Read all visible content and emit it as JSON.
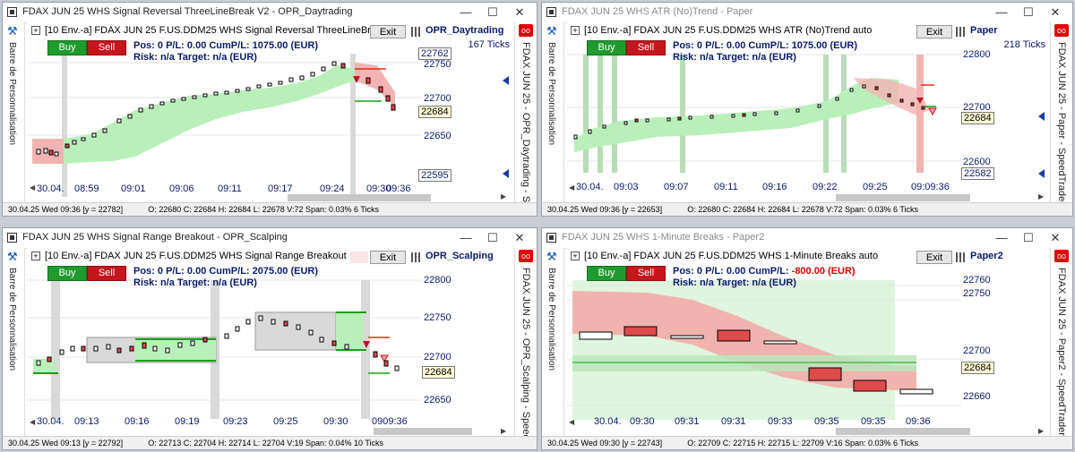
{
  "colors": {
    "green_zone": "#b9f0b9",
    "red_zone": "#f2b3b3",
    "gray_band": "#d9d9d9",
    "blue_text": "#0b1a6e"
  },
  "windows": [
    {
      "id": "w1",
      "title": "FDAX JUN 25   WHS Signal Reversal ThreeLineBreak V2 - OPR_Daytrading",
      "dim": false,
      "left_text": "Barre de Personnalisation",
      "right_text": "FDAX JUN 25 - OPR_Daytrading - SpeedTrader",
      "instrument": "[10 Env.-a] FDAX JUN 25   F.US.DDM25 WHS Signal Reversal ThreeLineBrea",
      "exit": "Exit",
      "account": "OPR_Daytrading",
      "ticks": "167 Ticks",
      "buy": "Buy",
      "sell": "Sell",
      "pos": "Pos: 0  P/L: 0.00  CumP/L:  1075.00 (EUR)",
      "pnl_neg": "",
      "risk": "Risk: n/a   Target: n/a (EUR)",
      "y_labels": [
        "22750",
        "22700",
        "22650"
      ],
      "y_boxes": [
        "22762",
        "22684",
        "22595"
      ],
      "x_labels": [
        "30.04.",
        "08:59",
        "09:01",
        "09:06",
        "09:11",
        "09:17",
        "09:24",
        "09:30",
        "09:36"
      ],
      "status": "30.04.25 Wed  09:36 [y = 22782]",
      "ohlc": "O: 22680  C: 22684  H: 22684  L: 22678  V:72  Span: 0.03% 6 Ticks"
    },
    {
      "id": "w2",
      "title": "FDAX JUN 25   WHS ATR (No)Trend - Paper",
      "dim": true,
      "left_text": "Barre de Personnalisation",
      "right_text": "FDAX JUN 25 - Paper - SpeedTrader",
      "instrument": "[10 Env.-a] FDAX JUN 25   F.US.DDM25 WHS ATR (No)Trend  auto",
      "exit": "Exit",
      "account": "Paper",
      "ticks": "218 Ticks",
      "buy": "Buy",
      "sell": "Sell",
      "pos": "Pos: 0  P/L: 0.00  CumP/L:  1075.00 (EUR)",
      "pnl_neg": "",
      "risk": "Risk: n/a   Target: n/a (EUR)",
      "y_labels": [
        "22800",
        "22700",
        "22600"
      ],
      "y_boxes": [
        "22684",
        "22582"
      ],
      "x_labels": [
        "30.04.",
        "09:03",
        "09:07",
        "09:11",
        "09:16",
        "09:22",
        "09:25",
        "09:09:36"
      ],
      "status": "30.04.25 Wed  09:36 [y = 22653]",
      "ohlc": "O: 22680  C: 22684  H: 22684  L: 22678  V:72  Span: 0.03% 6 Ticks"
    },
    {
      "id": "w3",
      "title": "FDAX JUN 25   WHS Signal Range Breakout - OPR_Scalping",
      "dim": false,
      "left_text": "Barre de Personnalisation",
      "right_text": "FDAX JUN 25 - OPR_Scalping - SpeedTrader",
      "instrument": "[10 Env.-a] FDAX JUN 25   F.US.DDM25 WHS Signal Range Breakout",
      "exit": "Exit",
      "account": "OPR_Scalping",
      "ticks": "",
      "buy": "Buy",
      "sell": "Sell",
      "pos": "Pos: 0  P/L: 0.00  CumP/L:  2075.00 (EUR)",
      "pnl_neg": "",
      "risk": "Risk: n/a   Target: n/a (EUR)",
      "y_labels": [
        "22800",
        "22750",
        "22700",
        "22650"
      ],
      "y_boxes": [
        "22684"
      ],
      "x_labels": [
        "30.04.",
        "09:13",
        "09:16",
        "09:19",
        "09:23",
        "09:25",
        "09:30",
        "0909:36"
      ],
      "status": "30.04.25 Wed  09:13 [y = 22792]",
      "ohlc": "O: 22713  C: 22704  H: 22714  L: 22704  V:19  Span: 0.04% 10 Ticks"
    },
    {
      "id": "w4",
      "title": "FDAX JUN 25   WHS 1-Minute Breaks - Paper2",
      "dim": true,
      "left_text": "Barre de Personnalisation",
      "right_text": "FDAX JUN 25 - Paper2 - SpeedTrader",
      "instrument": "[10 Env.-a] FDAX JUN 25   F.US.DDM25 WHS 1-Minute Breaks  auto",
      "exit": "Exit",
      "account": "Paper2",
      "ticks": "",
      "buy": "Buy",
      "sell": "Sell",
      "pos": "Pos: 0  P/L: 0.00  CumP/L:",
      "pnl_neg": "-800.00 (EUR)",
      "risk": "Risk: n/a   Target: n/a (EUR)",
      "y_labels": [
        "22760",
        "22750",
        "22700",
        "22660"
      ],
      "y_boxes": [
        "22684"
      ],
      "x_labels": [
        "30.04.",
        "09:30",
        "09:31",
        "09:31",
        "09:33",
        "09:35",
        "09:35",
        "09:36"
      ],
      "status": "30.04.25 Wed  09:30 [y = 22743]",
      "ohlc": "O: 22709  C: 22715  H: 22715  L: 22709  V:16  Span: 0.03% 6 Ticks"
    }
  ]
}
